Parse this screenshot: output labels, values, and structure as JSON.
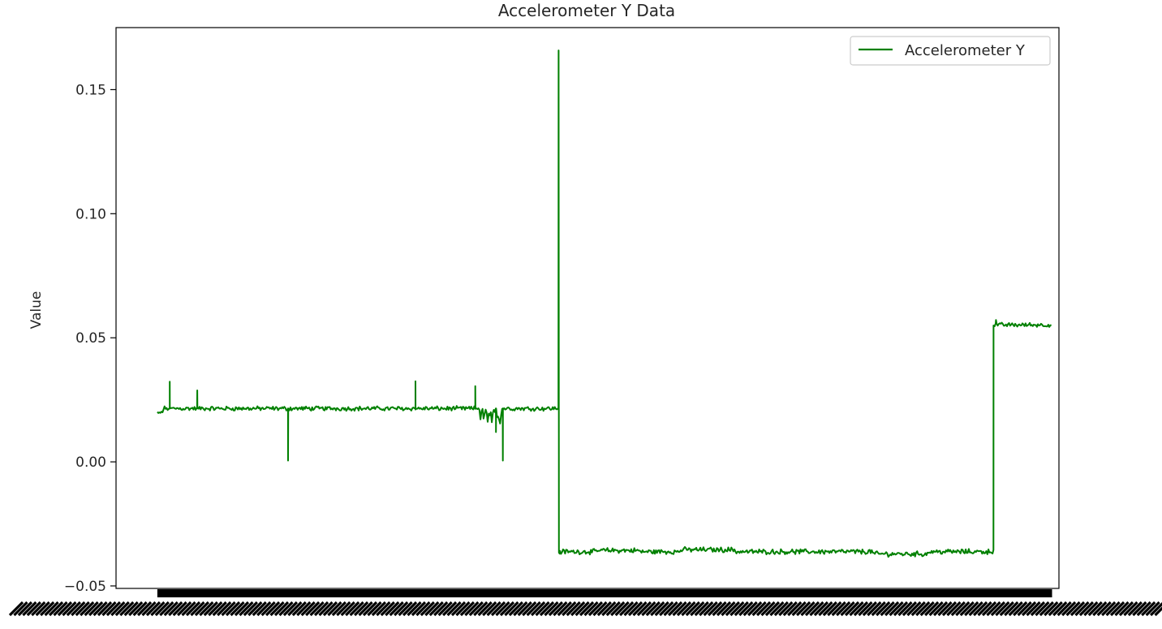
{
  "chart_data": {
    "type": "line",
    "title": "Accelerometer Y Data",
    "xlabel": "",
    "ylabel": "Value",
    "ylim": [
      -0.051,
      0.175
    ],
    "yticks": [
      -0.05,
      0.0,
      0.05,
      0.1,
      0.15
    ],
    "ytick_labels": [
      "−0.05",
      "0.00",
      "0.05",
      "0.10",
      "0.15"
    ],
    "xlim": [
      -60,
      1310
    ],
    "x_tick_labels_overlapping": true,
    "legend_position": "upper right",
    "grid": false,
    "series": [
      {
        "name": "Accelerometer Y",
        "color": "#008000",
        "segments": [
          {
            "x_start": 0,
            "x_end": 620,
            "mean": 0.0215,
            "noise": 0.0007
          },
          {
            "x_start": 620,
            "x_end": 1220,
            "mean": -0.0362,
            "noise": 0.0008
          },
          {
            "x_start": 1220,
            "x_end": 1300,
            "mean": 0.0552,
            "noise": 0.0007
          }
        ],
        "key_points": [
          {
            "x": 0,
            "y": 0.0195
          },
          {
            "x": 18,
            "y": 0.0323
          },
          {
            "x": 58,
            "y": 0.0288
          },
          {
            "x": 190,
            "y": 0.0005
          },
          {
            "x": 375,
            "y": 0.0325
          },
          {
            "x": 462,
            "y": 0.0305
          },
          {
            "x": 470,
            "y": 0.0145
          },
          {
            "x": 492,
            "y": 0.012
          },
          {
            "x": 502,
            "y": 0.0005
          },
          {
            "x": 583,
            "y": 0.1658
          },
          {
            "x": 585,
            "y": -0.037
          },
          {
            "x": 1215,
            "y": -0.0355
          },
          {
            "x": 1220,
            "y": 0.0572
          },
          {
            "x": 1300,
            "y": 0.0545
          }
        ]
      }
    ]
  }
}
